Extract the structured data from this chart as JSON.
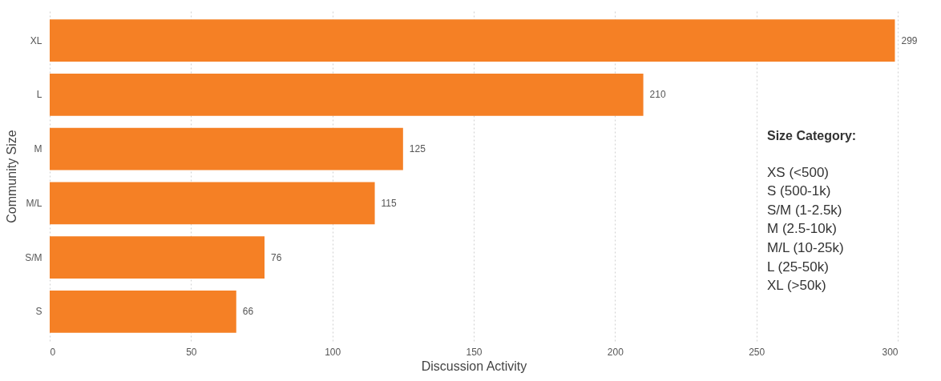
{
  "chart_data": {
    "type": "bar",
    "orientation": "horizontal",
    "xlabel": "Discussion Activity",
    "ylabel": "Community Size",
    "categories": [
      "XL",
      "L",
      "M",
      "M/L",
      "S/M",
      "S"
    ],
    "values": [
      299,
      210,
      125,
      115,
      76,
      66
    ],
    "color": "#f58025",
    "xlim": [
      0,
      300
    ],
    "xticks": [
      0,
      50,
      100,
      150,
      200,
      250,
      300
    ],
    "grid": "x",
    "data_labels": true,
    "annotations": [
      "Size Category:",
      "XS (<500)",
      "S (500-1k)",
      "S/M (1-2.5k)",
      "M (2.5-10k)",
      "M/L (10-25k)",
      "L (25-50k)",
      "XL (>50k)"
    ]
  }
}
